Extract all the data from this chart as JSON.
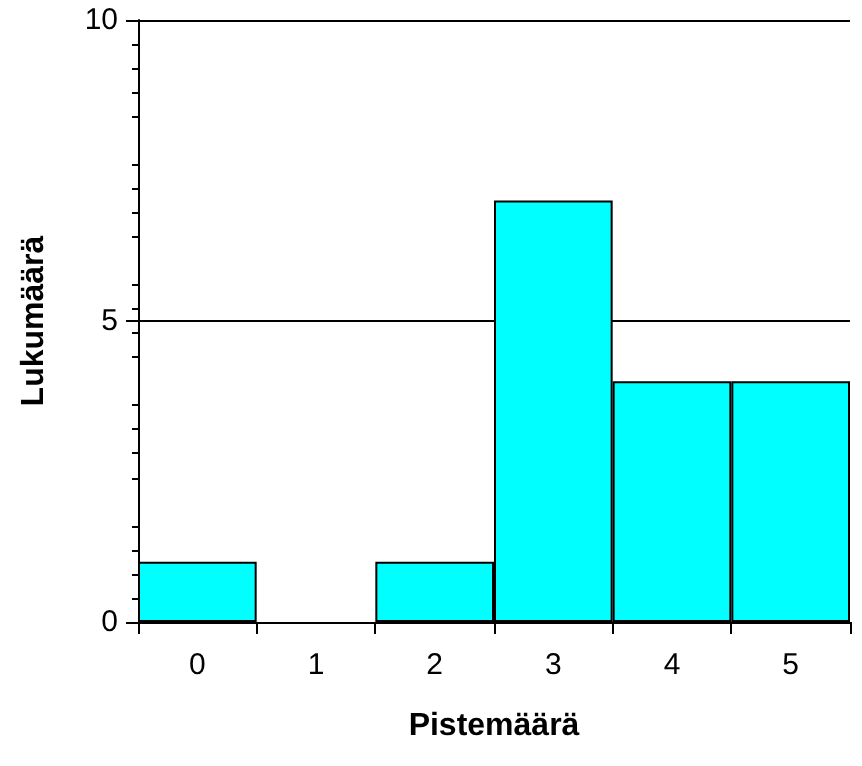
{
  "chart_data": {
    "type": "bar",
    "xlabel": "Pistemäärä",
    "ylabel": "Lukumäärä",
    "categories": [
      "0",
      "1",
      "2",
      "3",
      "4",
      "5"
    ],
    "values": [
      1,
      0,
      1,
      7,
      4,
      4
    ],
    "color": "#00ffff",
    "ylim": [
      0,
      10
    ],
    "yticks": [
      0,
      5,
      10
    ],
    "grid": "y"
  }
}
